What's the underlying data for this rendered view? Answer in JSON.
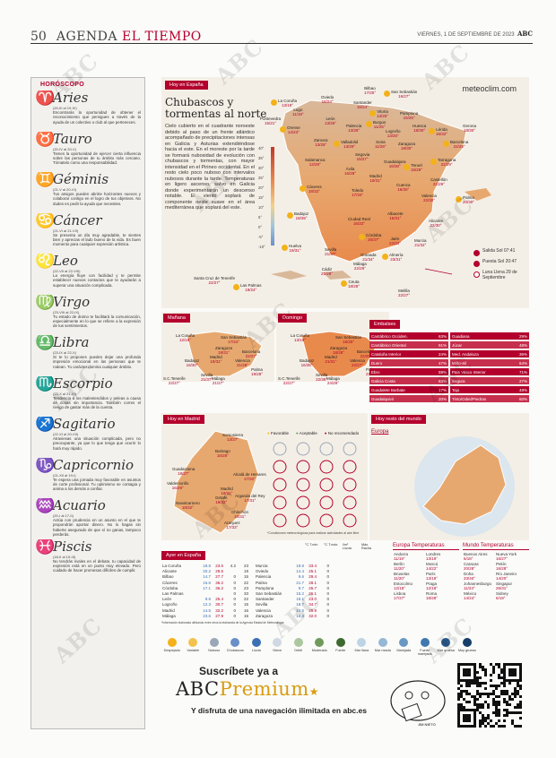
{
  "header": {
    "page": "50",
    "section_a": "AGENDA",
    "section_b": "EL TIEMPO",
    "date": "VIERNES, 1 DE SEPTIEMBRE DE 2023",
    "brand": "ABC"
  },
  "watermark": "ABC",
  "horoscope": {
    "title": "HORÓSCOPO",
    "signs": [
      {
        "glyph": "♈",
        "name": "Aries",
        "dates": "(20-III al 19-IV)",
        "text": "Encontrarás la oportunidad de obtener el reconocimiento que persigues a través de la ayuda de un colectivo o club al que perteneces."
      },
      {
        "glyph": "♉",
        "name": "Tauro",
        "dates": "(20-IV al 20-V)",
        "text": "Tienes la oportunidad de ejercer cierta influencia sobre las personas de tu ámbito más cercano. Tómatelo como una responsabilidad."
      },
      {
        "glyph": "♊",
        "name": "Géminis",
        "dates": "(21-V al 20-VI)",
        "text": "Tus amigos pueden abrirte horizontes nuevos y colaborar contigo en el logro de tus objetivos. No dudes en pedir la ayuda que necesites."
      },
      {
        "glyph": "♋",
        "name": "Cáncer",
        "dates": "(21-VI al 21-VII)",
        "text": "Se presenta un día muy agradable, te sientes bien y aprecias el lado bueno de la vida. Es buen momento para cualquier expresión artística."
      },
      {
        "glyph": "♌",
        "name": "Leo",
        "dates": "(22-VII al 22-VIII)",
        "text": "La energía fluye con facilidad y te permite establecer nuevos contactos que te ayudarán a superar una situación complicada."
      },
      {
        "glyph": "♍",
        "name": "Virgo",
        "dates": "(23-VIII al 22-IX)",
        "text": "Tu estado de ánimo te facilitará la comunicación, especialmente en lo que se refiere a la expresión de tus sentimientos."
      },
      {
        "glyph": "♎",
        "name": "Libra",
        "dates": "(23-IX al 22-X)",
        "text": "Si te lo propones puedes dejar una profunda impresión emocional en las personas que te rodean. Tu carácter domina cualquier ámbito."
      },
      {
        "glyph": "♏",
        "name": "Escorpio",
        "dates": "(23-X al 21-XI)",
        "text": "Tendencia a los malentendidos y peleas a causa de cosas sin importancia. También corres el riesgo de gastar más de la cuenta."
      },
      {
        "glyph": "♐",
        "name": "Sagitario",
        "dates": "(22-XI al 20-XII)",
        "text": "Atraviesas una situación complicada, pero no preocupante, ya que lo que tenga que ocurrir lo hará muy rápido."
      },
      {
        "glyph": "♑",
        "name": "Capricornio",
        "dates": "(21-XII al 19-I)",
        "text": "Te espera una jornada muy favorable en asuntos de corte profesional. Tu optimismo se contagia y anima a los demás a confiar."
      },
      {
        "glyph": "♒",
        "name": "Acuario",
        "dates": "(20-I al 17-II)",
        "text": "Actúa con prudencia en un asunto en el que te propondrán aportar dinero. No lo hagas sin haberte asegurado de que sí no ganas, tampoco perderás."
      },
      {
        "glyph": "♓",
        "name": "Piscis",
        "dates": "(18-II al 19-III)",
        "text": "No tendrás rivales en el debate, tu capacidad de expresión está en un punto muy elevado. Pero cuidado de hacer promesas difíciles de cumplir."
      }
    ]
  },
  "spain": {
    "label": "Hoy en España",
    "headline": "Chubascos y tormentas al norte",
    "body": "Cielo cubierto en el cuadrante noroeste debido al paso de un frente atlántico acompañado de precipitaciones intensas en Galicia y Asturias extendiéndose hacia el este. En el moreste por la tarde se formará nubosidad de evolución con chubascos y tormentas, con mayor intensidad en el Pirineo occidental. En el resto cielo poco nuboso con intervalos nubosos durante la tarde. Temperaturas en ligero ascenso, salvo en Galicia donde experimentarán un descenso notable. El viento soplará de componente oeste suave en el área mediterránea que soplará del este.",
    "site": "meteoclim.com",
    "scale": [
      "40°",
      "35°",
      "30°",
      "25°",
      "20°",
      "15°",
      "10°",
      "5°",
      "0°",
      "-5°",
      "-10°"
    ],
    "cities": [
      {
        "n": "La Coruña",
        "t": "13/19°"
      },
      {
        "n": "Oviedo",
        "t": "15/24°"
      },
      {
        "n": "Bilbao",
        "t": "17/25°"
      },
      {
        "n": "San Sebastián",
        "t": "16/27°"
      },
      {
        "n": "Lugo",
        "t": "11/19°"
      },
      {
        "n": "Santander",
        "t": "16/24°"
      },
      {
        "n": "Vitoria",
        "t": "13/25°"
      },
      {
        "n": "Pamplona",
        "t": "15/25°"
      },
      {
        "n": "Pontevedra",
        "t": "15/21°"
      },
      {
        "n": "Orense",
        "t": "14/23°"
      },
      {
        "n": "León",
        "t": "13/26°"
      },
      {
        "n": "Palencia",
        "t": "13/28°"
      },
      {
        "n": "Burgos",
        "t": "11/25°"
      },
      {
        "n": "Logroño",
        "t": "13/26°"
      },
      {
        "n": "Huesca",
        "t": "18/30°"
      },
      {
        "n": "Lérida",
        "t": "16/32°"
      },
      {
        "n": "Gerona",
        "t": "18/30°"
      },
      {
        "n": "Zamora",
        "t": "13/28°"
      },
      {
        "n": "Valladolid",
        "t": "13/29°"
      },
      {
        "n": "Soria",
        "t": "11/26°"
      },
      {
        "n": "Zaragoza",
        "t": "18/30°"
      },
      {
        "n": "Barcelona",
        "t": "22/29°"
      },
      {
        "n": "Salamanca",
        "t": "12/29°"
      },
      {
        "n": "Segovia",
        "t": "15/27°"
      },
      {
        "n": "Tarragona",
        "t": "22/29°"
      },
      {
        "n": "Ávila",
        "t": "16/28°"
      },
      {
        "n": "Guadalajara",
        "t": "16/30°"
      },
      {
        "n": "Teruel",
        "t": "15/29°"
      },
      {
        "n": "Madrid",
        "t": "19/31°"
      },
      {
        "n": "Castellón",
        "t": "21/29°"
      },
      {
        "n": "Cáceres",
        "t": "18/32°"
      },
      {
        "n": "Toledo",
        "t": "17/33°"
      },
      {
        "n": "Cuenca",
        "t": "16/30°"
      },
      {
        "n": "Palma",
        "t": "20/30°"
      },
      {
        "n": "Valencia",
        "t": "22/30°"
      },
      {
        "n": "Albacete",
        "t": "15/31°"
      },
      {
        "n": "Badajoz",
        "t": "18/35°"
      },
      {
        "n": "Ciudad Real",
        "t": "16/33°"
      },
      {
        "n": "Alicante",
        "t": "22/30°"
      },
      {
        "n": "Córdoba",
        "t": "20/37°"
      },
      {
        "n": "Jaén",
        "t": "22/33°"
      },
      {
        "n": "Murcia",
        "t": "21/32°"
      },
      {
        "n": "Huelva",
        "t": "19/31°"
      },
      {
        "n": "Sevilla",
        "t": "21/37°"
      },
      {
        "n": "Granada",
        "t": "21/34°"
      },
      {
        "n": "Almería",
        "t": "23/31°"
      },
      {
        "n": "Cádiz",
        "t": "21/28°"
      },
      {
        "n": "Málaga",
        "t": "22/29°"
      },
      {
        "n": "Ceuta",
        "t": "18/28°"
      },
      {
        "n": "Melilla",
        "t": "22/27°"
      },
      {
        "n": "Santa Cruz de Tenerife",
        "t": "22/27°"
      },
      {
        "n": "Las Palmas",
        "t": "19/24°"
      }
    ],
    "sun": {
      "rise": "Salida Sol 07:41",
      "set": "Puesta Sol 20:47",
      "moon": "Luna Llena 29 de Septiembre"
    }
  },
  "mini_maps": [
    {
      "label": "Mañana",
      "id": "manana"
    },
    {
      "label": "Domingo",
      "id": "domingo"
    }
  ],
  "mini_cities": [
    "La Coruña",
    "San Sebastián",
    "Zaragoza",
    "Barcelona",
    "Madrid",
    "Valencia",
    "Badajoz",
    "Sevilla",
    "Málaga",
    "S.C.Tenerife",
    "Palma"
  ],
  "mini_temps_manana": [
    "12/19°",
    "17/24°",
    "19/31°",
    "22/27°",
    "19/31°",
    "21/28°",
    "16/30°",
    "21/37°",
    "21/27°",
    "22/27°",
    "19/28°"
  ],
  "mini_temps_domingo": [
    "13/19°",
    "16/25°",
    "18/28°",
    "22/25°",
    "21/31°",
    "22/27°",
    "16/35°",
    "22/38°",
    "24/29°",
    "22/27°",
    "21/28°"
  ],
  "embalses": {
    "label": "Embalses",
    "rows": [
      [
        "Cantábrico Occiden.",
        "63%",
        "Guadiana",
        "29%"
      ],
      [
        "Cantábrico Oriental",
        "91%",
        "Júcar",
        "48%"
      ],
      [
        "Cataluña Interior",
        "24%",
        "Med. Andaluza",
        "36%"
      ],
      [
        "Duero",
        "47%",
        "Miño-Sil",
        "64%"
      ],
      [
        "Ebro",
        "59%",
        "País Vasco Interior",
        "71%"
      ],
      [
        "Galicia Costa",
        "63%",
        "Segura",
        "27%"
      ],
      [
        "Guadalete Barbate",
        "17%",
        "Tajo",
        "48%"
      ],
      [
        "Guadalquivir",
        "20%",
        "Tinto/Odiel/Piedras",
        "60%"
      ]
    ]
  },
  "madrid": {
    "label": "Hoy en Madrid",
    "legend": [
      "Favorable",
      "Aceptable",
      "No recomendado"
    ],
    "note": "*Condiciones meteorológicas para realizar actividades al aire libre",
    "cities": [
      {
        "n": "Somosierra",
        "t": "13/27°"
      },
      {
        "n": "Buitrago",
        "t": "16/28°"
      },
      {
        "n": "Guadarrama",
        "t": "18/27°"
      },
      {
        "n": "Alcalá de Henares",
        "t": "17/32°"
      },
      {
        "n": "Valdemorillo",
        "t": "16/29°"
      },
      {
        "n": "Madrid",
        "t": "19/31°"
      },
      {
        "n": "Getafe",
        "t": "19/32°"
      },
      {
        "n": "Arganda del Rey",
        "t": "17/31°"
      },
      {
        "n": "Navalcarnero",
        "t": "18/32°"
      },
      {
        "n": "Chinchón",
        "t": "18/31°"
      },
      {
        "n": "Aranjuez",
        "t": "17/33°"
      }
    ]
  },
  "world": {
    "label": "Hoy resto del mundo",
    "region": "Europa"
  },
  "ayer": {
    "label": "Ayer en España",
    "headers": [
      "°C T.min",
      "°C T.máx",
      "l/m² Lluvia",
      "Máx. Racha"
    ],
    "left": [
      [
        "La Coruña",
        "18.8",
        "23.6",
        "4.2",
        "23"
      ],
      [
        "Alicante",
        "20.2",
        "29.5",
        "",
        "19"
      ],
      [
        "Bilbao",
        "14.7",
        "27.7",
        "0",
        "15"
      ],
      [
        "Cáceres",
        "16.6",
        "36.2",
        "0",
        "22"
      ],
      [
        "Córdoba",
        "17.1",
        "36.2",
        "0",
        "23"
      ],
      [
        "Las Palmas",
        "",
        "",
        "0",
        "33"
      ],
      [
        "León",
        "9.8",
        "25.4",
        "0",
        "22"
      ],
      [
        "Logroño",
        "12.3",
        "30.7",
        "0",
        "15"
      ],
      [
        "Madrid",
        "14.5",
        "32.2",
        "0",
        "16"
      ],
      [
        "Málaga",
        "23.6",
        "27.9",
        "0",
        "15"
      ]
    ],
    "right": [
      [
        "Murcia",
        "18.8",
        "33.4",
        "0",
        ""
      ],
      [
        "Oviedo",
        "14.4",
        "25.1",
        "0",
        ""
      ],
      [
        "Palencia",
        "9.6",
        "29.4",
        "0",
        ""
      ],
      [
        "Palma",
        "21.7",
        "28.1",
        "0",
        ""
      ],
      [
        "Pamplona",
        "9.7",
        "26.7",
        "0",
        ""
      ],
      [
        "San Sebastián",
        "15.2",
        "26.1",
        "0",
        ""
      ],
      [
        "Santander",
        "18.1",
        "23.0",
        "0",
        ""
      ],
      [
        "Sevilla",
        "18.7",
        "34.7",
        "0",
        ""
      ],
      [
        "Valencia",
        "19.5",
        "29.9",
        "0",
        ""
      ],
      [
        "Zaragoza",
        "16.3",
        "32.0",
        "0",
        ""
      ]
    ],
    "note": "*Información elaborada utilizando entre otros la elaborada de la Agencia Estatal de Meteorología"
  },
  "europe_temps": {
    "label": "Europa Temperaturas",
    "rows": [
      [
        "Andorra",
        "11/19°",
        "Londres",
        "13/19°"
      ],
      [
        "Berlín",
        "11/20°",
        "Moscú",
        "14/22°"
      ],
      [
        "Bruselas",
        "11/20°",
        "París",
        "13/19°"
      ],
      [
        "Estocolmo",
        "12/18°",
        "Praga",
        "12/18°"
      ],
      [
        "Lisboa",
        "17/27°",
        "Roma",
        "18/28°"
      ]
    ]
  },
  "world_temps": {
    "label": "Mundo Temperaturas",
    "rows": [
      [
        "Buenos Aires",
        "6/18°",
        "Nueva York",
        "16/27°"
      ],
      [
        "Caracas",
        "20/28°",
        "Pekín",
        "16/28°"
      ],
      [
        "Doha",
        "33/40°",
        "Río Janeiro",
        "14/20°"
      ],
      [
        "Johannesburgo",
        "11/23°",
        "Singapur",
        "26/31°"
      ],
      [
        "México",
        "14/24°",
        "Sidney",
        "6/19°"
      ]
    ]
  },
  "legend": [
    "Despejado",
    "Variable",
    "Nuboso",
    "Chubascos",
    "Lluvia",
    "Nieve",
    "Débil",
    "Moderado",
    "Fuerte",
    "Mar llana",
    "Mar rizada",
    "Marejada",
    "Fuerte marejada",
    "Mar gruesa",
    "Muy gruesa"
  ],
  "ad": {
    "line1": "Suscríbete ya a",
    "brand_a": "ABC",
    "brand_b": "Premium",
    "line3": "Y disfruta de una navegación ilimitada en abc.es",
    "signature": "JIM NIETO"
  }
}
